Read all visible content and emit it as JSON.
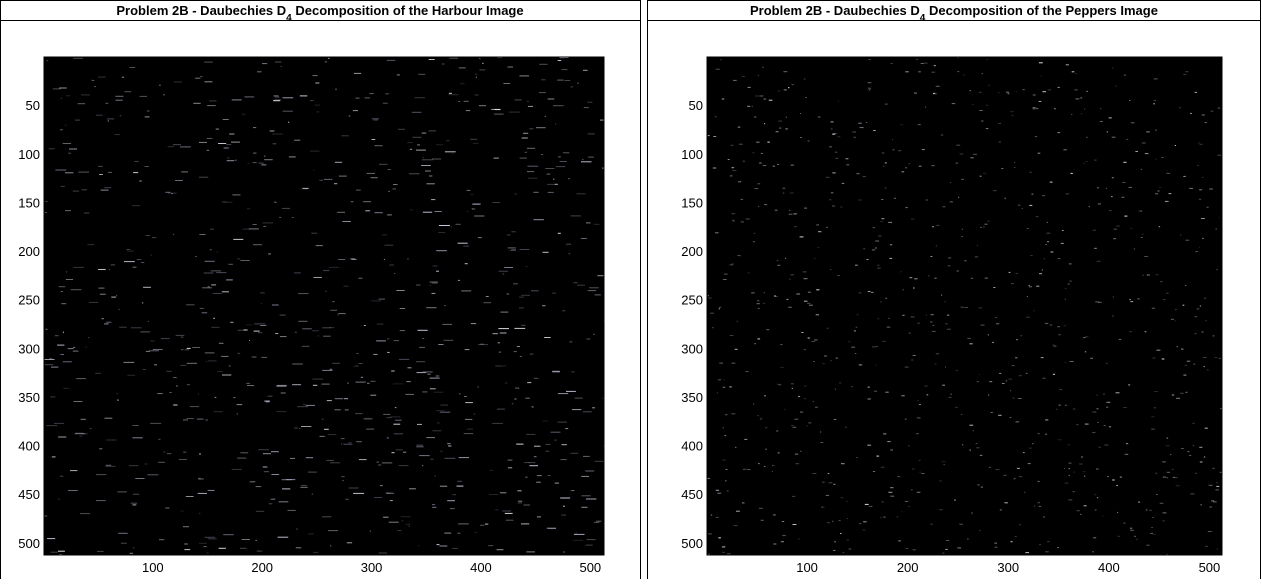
{
  "chart_data": [
    {
      "type": "image",
      "title": [
        "Problem 2B - Daubechies D",
        "4",
        " Decomposition of the Harbour Image"
      ],
      "xlim": [
        0.5,
        512.5
      ],
      "ylim": [
        0.5,
        512.5
      ],
      "y_reversed": true,
      "xticks": [
        100,
        200,
        300,
        400,
        500
      ],
      "yticks": [
        50,
        100,
        150,
        200,
        250,
        300,
        350,
        400,
        450,
        500
      ]
    },
    {
      "type": "image",
      "title": [
        "Problem 2B - Daubechies D",
        "4",
        " Decomposition of the Peppers Image"
      ],
      "xlim": [
        0.5,
        512.5
      ],
      "ylim": [
        0.5,
        512.5
      ],
      "y_reversed": true,
      "xticks": [
        100,
        200,
        300,
        400,
        500
      ],
      "yticks": [
        50,
        100,
        150,
        200,
        250,
        300,
        350,
        400,
        450,
        500
      ]
    }
  ]
}
